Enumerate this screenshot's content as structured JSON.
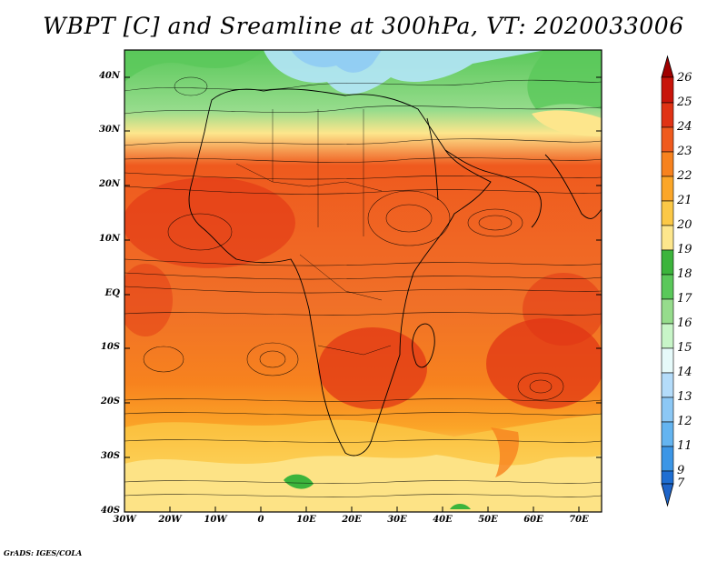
{
  "title": "WBPT [C] and Sreamline at 300hPa, VT: 2020033006",
  "credit": "GrADS: IGES/COLA",
  "axes": {
    "lat_labels": [
      "40N",
      "30N",
      "20N",
      "10N",
      "EQ",
      "10S",
      "20S",
      "30S",
      "40S"
    ],
    "lon_labels": [
      "30W",
      "20W",
      "10W",
      "0",
      "10E",
      "20E",
      "30E",
      "40E",
      "50E",
      "60E",
      "70E"
    ]
  },
  "colorbar": {
    "labels": [
      "26",
      "25",
      "24",
      "23",
      "22",
      "21",
      "20",
      "19",
      "18",
      "17",
      "16",
      "15",
      "14",
      "13",
      "12",
      "11",
      "9",
      "7"
    ],
    "colors": [
      "#a50000",
      "#c8140a",
      "#e03214",
      "#ef5a1e",
      "#f7821e",
      "#fba628",
      "#fbc846",
      "#fde68c",
      "#3cb43c",
      "#5ac85a",
      "#96dc8c",
      "#c8f5c8",
      "#e6fafa",
      "#b4dcfa",
      "#8cc8f5",
      "#64b4f0",
      "#3c96e6",
      "#1e6ed2"
    ],
    "top_color": "#a00000",
    "bottom_color": "#1e64c8"
  },
  "regions": {
    "north_green": "#5ac85a",
    "north_cyan": "#b4e6fa",
    "yellow": "#fde68c",
    "orange": "#f7821e",
    "red": "#e03214",
    "pale": "#fbe6a0"
  }
}
